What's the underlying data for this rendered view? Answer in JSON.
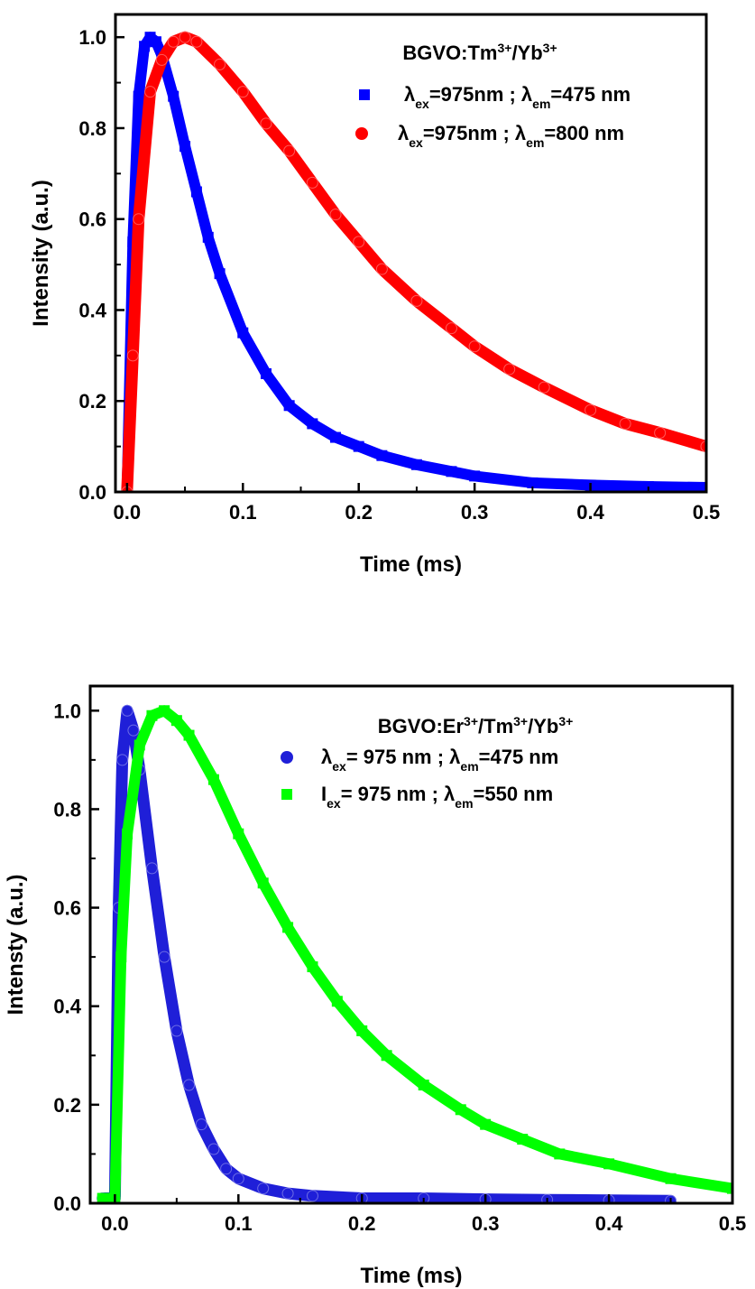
{
  "chart_data": [
    {
      "type": "scatter",
      "title": "BGVO:Tm3+/Yb3+",
      "title_parts": [
        {
          "t": "BGVO:Tm"
        },
        {
          "t": "3+",
          "sup": true
        },
        {
          "t": "/Yb"
        },
        {
          "t": "3+",
          "sup": true
        }
      ],
      "xlabel": "Time (ms)",
      "ylabel": "Intensity (a.u.)",
      "xlim": [
        -0.01,
        0.5
      ],
      "ylim": [
        0,
        1.05
      ],
      "xticks": [
        0.0,
        0.1,
        0.2,
        0.3,
        0.4,
        0.5
      ],
      "xtick_labels": [
        "0.0",
        "0.1",
        "0.2",
        "0.3",
        "0.4",
        "0.5"
      ],
      "yticks": [
        0.0,
        0.2,
        0.4,
        0.6,
        0.8,
        1.0
      ],
      "ytick_labels": [
        "0.0",
        "0.2",
        "0.4",
        "0.6",
        "0.8",
        "1.0"
      ],
      "legend_position": "top-right",
      "series": [
        {
          "name": "λex=975nm ; λem=475 nm",
          "name_parts": [
            {
              "t": "λ"
            },
            {
              "t": "ex",
              "sub": true
            },
            {
              "t": "=975nm ; λ"
            },
            {
              "t": "em",
              "sub": true
            },
            {
              "t": "=475 nm"
            }
          ],
          "color": "#0000ff",
          "marker": "square",
          "x": [
            0.0,
            0.005,
            0.01,
            0.015,
            0.02,
            0.025,
            0.03,
            0.04,
            0.05,
            0.06,
            0.07,
            0.08,
            0.1,
            0.12,
            0.14,
            0.16,
            0.18,
            0.2,
            0.22,
            0.25,
            0.28,
            0.3,
            0.35,
            0.4,
            0.45,
            0.5
          ],
          "y": [
            0.0,
            0.55,
            0.87,
            0.98,
            1.0,
            0.99,
            0.96,
            0.87,
            0.76,
            0.66,
            0.56,
            0.48,
            0.35,
            0.26,
            0.19,
            0.15,
            0.12,
            0.1,
            0.08,
            0.06,
            0.045,
            0.035,
            0.02,
            0.015,
            0.012,
            0.01
          ]
        },
        {
          "name": "λex=975nm ; λem=800 nm",
          "name_parts": [
            {
              "t": "λ"
            },
            {
              "t": "ex",
              "sub": true
            },
            {
              "t": "=975nm ; λ"
            },
            {
              "t": "em",
              "sub": true
            },
            {
              "t": "=800 nm"
            }
          ],
          "color": "#ff0000",
          "marker": "circle",
          "x": [
            0.0,
            0.005,
            0.01,
            0.02,
            0.03,
            0.04,
            0.05,
            0.06,
            0.08,
            0.1,
            0.12,
            0.14,
            0.16,
            0.18,
            0.2,
            0.22,
            0.25,
            0.28,
            0.3,
            0.33,
            0.36,
            0.4,
            0.43,
            0.46,
            0.5
          ],
          "y": [
            0.0,
            0.3,
            0.6,
            0.88,
            0.95,
            0.99,
            1.0,
            0.99,
            0.94,
            0.88,
            0.81,
            0.75,
            0.68,
            0.61,
            0.55,
            0.49,
            0.42,
            0.36,
            0.32,
            0.27,
            0.23,
            0.18,
            0.15,
            0.13,
            0.1
          ]
        }
      ]
    },
    {
      "type": "scatter",
      "title": "BGVO:Er3+/Tm3+/Yb3+",
      "title_parts": [
        {
          "t": "BGVO:Er"
        },
        {
          "t": "3+",
          "sup": true
        },
        {
          "t": "/Tm"
        },
        {
          "t": "3+",
          "sup": true
        },
        {
          "t": "/Yb"
        },
        {
          "t": "3+",
          "sup": true
        }
      ],
      "xlabel": "Time (ms)",
      "ylabel": "Intensty (a.u.)",
      "xlim": [
        -0.02,
        0.5
      ],
      "ylim": [
        0,
        1.05
      ],
      "xticks": [
        0.0,
        0.1,
        0.2,
        0.3,
        0.4,
        0.5
      ],
      "xtick_labels": [
        "0.0",
        "0.1",
        "0.2",
        "0.3",
        "0.4",
        "0.5"
      ],
      "yticks": [
        0.0,
        0.2,
        0.4,
        0.6,
        0.8,
        1.0
      ],
      "ytick_labels": [
        "0.0",
        "0.2",
        "0.4",
        "0.6",
        "0.8",
        "1.0"
      ],
      "legend_position": "top-right",
      "series": [
        {
          "name": "λex= 975 nm ; λem=475 nm",
          "name_parts": [
            {
              "t": "λ"
            },
            {
              "t": "ex",
              "sub": true
            },
            {
              "t": "= 975 nm ; λ"
            },
            {
              "t": "em",
              "sub": true
            },
            {
              "t": "=475 nm"
            }
          ],
          "color": "#1f1fd8",
          "marker": "circle",
          "x": [
            -0.01,
            0.0,
            0.003,
            0.006,
            0.01,
            0.015,
            0.02,
            0.03,
            0.04,
            0.05,
            0.06,
            0.07,
            0.08,
            0.09,
            0.1,
            0.12,
            0.14,
            0.16,
            0.2,
            0.25,
            0.3,
            0.35,
            0.4,
            0.45
          ],
          "y": [
            0.01,
            0.01,
            0.6,
            0.9,
            1.0,
            0.96,
            0.88,
            0.68,
            0.5,
            0.35,
            0.24,
            0.16,
            0.11,
            0.07,
            0.05,
            0.03,
            0.02,
            0.015,
            0.01,
            0.01,
            0.008,
            0.007,
            0.006,
            0.005
          ]
        },
        {
          "name": "Iex= 975 nm ; λem=550 nm",
          "name_parts": [
            {
              "t": "I"
            },
            {
              "t": "ex",
              "sub": true
            },
            {
              "t": "= 975 nm ; λ"
            },
            {
              "t": "em",
              "sub": true
            },
            {
              "t": "=550 nm"
            }
          ],
          "color": "#00ff00",
          "marker": "square",
          "x": [
            -0.01,
            0.0,
            0.005,
            0.01,
            0.02,
            0.03,
            0.04,
            0.05,
            0.06,
            0.08,
            0.1,
            0.12,
            0.14,
            0.16,
            0.18,
            0.2,
            0.22,
            0.25,
            0.28,
            0.3,
            0.33,
            0.36,
            0.4,
            0.45,
            0.5
          ],
          "y": [
            0.01,
            0.01,
            0.5,
            0.75,
            0.93,
            0.99,
            1.0,
            0.98,
            0.95,
            0.86,
            0.75,
            0.65,
            0.56,
            0.48,
            0.41,
            0.35,
            0.3,
            0.24,
            0.19,
            0.16,
            0.13,
            0.1,
            0.08,
            0.05,
            0.03
          ]
        }
      ]
    }
  ]
}
